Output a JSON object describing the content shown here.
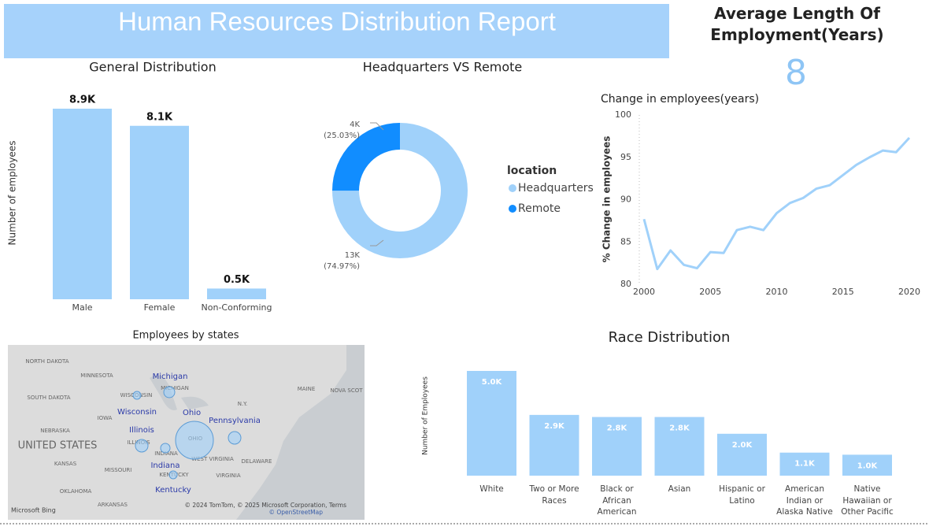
{
  "header": {
    "title": "Human Resources Distribution Report"
  },
  "kpi": {
    "title": "Average Length Of Employment(Years)",
    "value": 8
  },
  "chart_data": [
    {
      "type": "bar",
      "title": "General Distribution",
      "y_label": "Number of employees",
      "categories": [
        "Male",
        "Female",
        "Non-Conforming"
      ],
      "values": [
        8900,
        8100,
        500
      ],
      "value_labels": [
        "8.9K",
        "8.1K",
        "0.5K"
      ],
      "color": "#a0d1fa"
    },
    {
      "type": "donut",
      "title": "Headquarters VS Remote",
      "legend_title": "location",
      "categories": [
        "Headquarters",
        "Remote"
      ],
      "values": [
        74.97,
        25.03
      ],
      "value_labels": [
        "(74.97%)",
        "(25.03%)"
      ],
      "counts": [
        13000,
        4000
      ],
      "count_labels": [
        "13K",
        "4K"
      ],
      "colors": [
        "#a0d1fa",
        "#118dff"
      ]
    },
    {
      "type": "line",
      "title": "Change in employees(years)",
      "y_label": "% Change in employees",
      "x": [
        2000,
        2001,
        2002,
        2003,
        2004,
        2005,
        2006,
        2007,
        2008,
        2009,
        2010,
        2011,
        2012,
        2013,
        2014,
        2015,
        2016,
        2017,
        2018,
        2019,
        2020
      ],
      "values": [
        87.7,
        81.8,
        84.0,
        82.3,
        81.9,
        83.8,
        83.7,
        86.4,
        86.8,
        86.4,
        88.4,
        89.6,
        90.2,
        91.3,
        91.7,
        92.9,
        94.1,
        95.0,
        95.8,
        95.6,
        97.3
      ],
      "color": "#a0d1fa",
      "xlim": [
        2000,
        2020
      ],
      "xticks": [
        2000,
        2005,
        2010,
        2015,
        2020
      ],
      "ylim": [
        80,
        100
      ],
      "yticks": [
        80,
        85,
        90,
        95,
        100
      ]
    },
    {
      "type": "bar",
      "title": "Race Distribution",
      "y_label": "Number of Employees",
      "categories": [
        "White",
        "Two or More Races",
        "Black or African American",
        "Asian",
        "Hispanic or Latino",
        "American Indian or Alaska Native",
        "Native Hawaiian or Other Pacific ..."
      ],
      "values": [
        5000,
        2900,
        2800,
        2800,
        2000,
        1100,
        1000
      ],
      "value_labels": [
        "5.0K",
        "2.9K",
        "2.8K",
        "2.8K",
        "2.0K",
        "1.1K",
        "1.0K"
      ],
      "color": "#a0d1fa"
    }
  ],
  "map": {
    "title": "Employees by states",
    "regions": [
      "NORTH DAKOTA",
      "MINNESOTA",
      "SOUTH DAKOTA",
      "IOWA",
      "NEBRASKA",
      "UNITED STATES",
      "KANSAS",
      "MISSOURI",
      "OKLAHOMA",
      "ARKANSAS",
      "WISCONSIN",
      "MICHIGAN",
      "ILLINOIS",
      "INDIANA",
      "OHIO",
      "KENTUCKY",
      "WEST VIRGINIA",
      "VIRGINIA",
      "DELAWARE",
      "N.Y.",
      "MAINE",
      "NOVA SCOT"
    ],
    "bubbles": [
      "Michigan",
      "Wisconsin",
      "Ohio",
      "Pennsylvania",
      "Illinois",
      "Indiana",
      "Kentucky"
    ],
    "attribution": "© 2024 TomTom, © 2025 Microsoft Corporation, Terms",
    "osm": "© OpenStreetMap",
    "logo": "Microsoft Bing"
  }
}
